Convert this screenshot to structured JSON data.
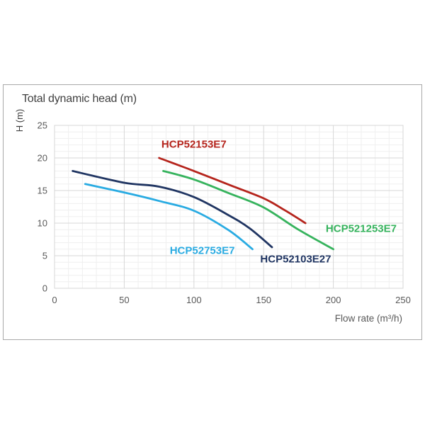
{
  "page": {
    "background": "#ffffff"
  },
  "frame": {
    "border_color": "#a9a9a9"
  },
  "chart_data": {
    "type": "line",
    "title": "Total dynamic head (m)",
    "xlabel": "Flow rate (m³/h)",
    "ylabel": "H (m)",
    "xlim": [
      0,
      250
    ],
    "ylim": [
      0,
      25
    ],
    "x_ticks": [
      0,
      50,
      100,
      150,
      200,
      250
    ],
    "y_ticks": [
      0,
      5,
      10,
      15,
      20,
      25
    ],
    "x_minor_step": 10,
    "y_minor_step": 1,
    "grid": "major and minor gridlines, light gray",
    "legend_position": "inline colored labels next to each curve",
    "series": [
      {
        "name": "HCP52153E7",
        "color": "#b5241c",
        "points": [
          [
            75,
            20
          ],
          [
            100,
            18
          ],
          [
            125,
            15.9
          ],
          [
            150,
            13.8
          ],
          [
            165,
            12
          ],
          [
            180,
            10
          ]
        ],
        "label_pos": [
          100,
          22.1
        ]
      },
      {
        "name": "HCP521253E7",
        "color": "#36b35d",
        "points": [
          [
            78,
            18
          ],
          [
            100,
            16.7
          ],
          [
            125,
            14.6
          ],
          [
            150,
            12.4
          ],
          [
            175,
            9
          ],
          [
            200,
            6
          ]
        ],
        "label_pos": [
          220,
          9.1
        ]
      },
      {
        "name": "HCP52103E27",
        "color": "#203562",
        "points": [
          [
            13,
            18
          ],
          [
            50,
            16.2
          ],
          [
            75,
            15.6
          ],
          [
            100,
            14
          ],
          [
            125,
            11.2
          ],
          [
            140,
            9.2
          ],
          [
            156,
            6.3
          ]
        ],
        "label_pos": [
          173,
          4.5
        ]
      },
      {
        "name": "HCP52753E7",
        "color": "#29abe2",
        "points": [
          [
            22,
            16
          ],
          [
            50,
            14.7
          ],
          [
            75,
            13.4
          ],
          [
            100,
            11.9
          ],
          [
            125,
            8.9
          ],
          [
            142,
            6
          ]
        ],
        "label_pos": [
          106,
          5.8
        ]
      }
    ],
    "styles": {
      "grid_major_color": "#d7d7d7",
      "grid_minor_color": "#efefef",
      "plot_border_color": "#d7d7d7",
      "tick_label_color": "#595959",
      "title_color": "#3f3f3f",
      "line_width": 2.8
    }
  }
}
